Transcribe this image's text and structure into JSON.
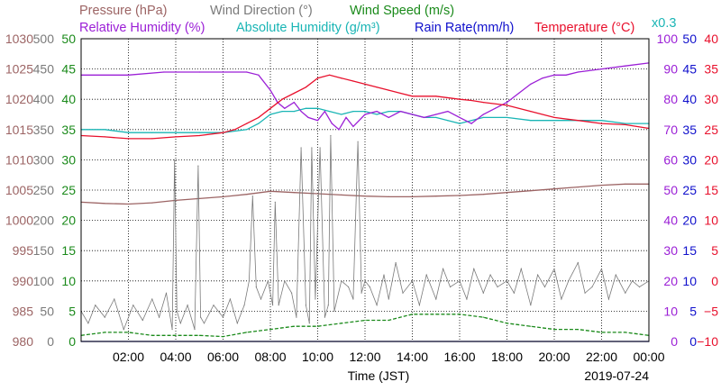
{
  "chart_data": {
    "type": "line",
    "date": "2019-07-24",
    "xlabel": "Time (JST)",
    "x_ticks": [
      "02:00",
      "04:00",
      "06:00",
      "08:00",
      "10:00",
      "12:00",
      "14:00",
      "16:00",
      "18:00",
      "20:00",
      "22:00",
      "00:00"
    ],
    "xlim_hours": [
      0,
      24
    ],
    "grid": true,
    "legend": {
      "row1": [
        {
          "text": "Pressure (hPa)",
          "color": "#9c6464"
        },
        {
          "text": "Wind Direction (°)",
          "color": "#7a7a7a"
        },
        {
          "text": "Wind Speed (m/s)",
          "color": "#1a8a1a"
        }
      ],
      "row2": [
        {
          "text": "Relative Humidity (%)",
          "color": "#9b1fd6"
        },
        {
          "text": "Absolute Humidity (g/m³)",
          "color": "#1ab5b5"
        },
        {
          "text": "Rain Rate(mm/h)",
          "color": "#1010cc"
        },
        {
          "text": "Temperature (°C)",
          "color": "#e8102c"
        }
      ],
      "multiplier": "x0.3",
      "multiplier_color": "#1ab5b5"
    },
    "axes": {
      "pressure": {
        "label": "Pressure (hPa)",
        "color": "#9c6464",
        "range": [
          980,
          1030
        ],
        "ticks": [
          "980",
          "985",
          "990",
          "995",
          "1000",
          "1005",
          "1010",
          "1015",
          "1020",
          "1025",
          "1030"
        ]
      },
      "wind_direction": {
        "label": "Wind Direction (°)",
        "color": "#7a7a7a",
        "range": [
          0,
          500
        ],
        "ticks": [
          "0",
          "50",
          "100",
          "150",
          "200",
          "250",
          "300",
          "350",
          "400",
          "450",
          "500"
        ]
      },
      "wind_speed": {
        "label": "Wind Speed (m/s)",
        "color": "#1a8a1a",
        "range": [
          0,
          50
        ],
        "ticks": [
          "0",
          "5",
          "10",
          "15",
          "20",
          "25",
          "30",
          "35",
          "40",
          "45",
          "50"
        ]
      },
      "relative_humidity": {
        "label": "Relative Humidity (%)",
        "color": "#9b1fd6",
        "range": [
          0,
          100
        ],
        "ticks": [
          "0",
          "10",
          "20",
          "30",
          "40",
          "50",
          "60",
          "70",
          "80",
          "90",
          "100"
        ]
      },
      "rain_rate": {
        "label": "Rain Rate(mm/h)",
        "color": "#1010cc",
        "range": [
          0,
          50
        ],
        "ticks": [
          "0",
          "5",
          "10",
          "15",
          "20",
          "25",
          "30",
          "35",
          "40",
          "45",
          "50"
        ]
      },
      "temperature": {
        "label": "Temperature (°C)",
        "color": "#e8102c",
        "range": [
          -10,
          40
        ],
        "ticks": [
          "−10",
          "−5",
          "0",
          "5",
          "10",
          "15",
          "20",
          "25",
          "30",
          "35",
          "40"
        ]
      }
    },
    "series": [
      {
        "name": "Pressure (hPa)",
        "axis": "pressure",
        "color": "#9c6464",
        "x": [
          0,
          1,
          2,
          3,
          4,
          5,
          6,
          7,
          8,
          9,
          10,
          11,
          12,
          13,
          14,
          15,
          16,
          17,
          18,
          19,
          20,
          21,
          22,
          23,
          24
        ],
        "values": [
          1003.0,
          1002.8,
          1002.7,
          1002.9,
          1003.3,
          1003.6,
          1003.9,
          1004.3,
          1004.8,
          1004.6,
          1004.4,
          1004.2,
          1004.0,
          1003.9,
          1003.9,
          1004.0,
          1004.1,
          1004.3,
          1004.6,
          1004.9,
          1005.2,
          1005.5,
          1005.8,
          1006.0,
          1006.0
        ]
      },
      {
        "name": "Relative Humidity (%)",
        "axis": "relative_humidity",
        "color": "#9b1fd6",
        "x": [
          0,
          2,
          3.5,
          5,
          6,
          7,
          7.5,
          8,
          8.3,
          8.6,
          9,
          9.3,
          9.6,
          10,
          10.3,
          10.6,
          10.9,
          11.2,
          11.5,
          12,
          12.5,
          13,
          13.5,
          14,
          14.5,
          15,
          15.5,
          16,
          16.5,
          17,
          17.5,
          18,
          18.5,
          19,
          19.5,
          20,
          20.5,
          21,
          22,
          23,
          24
        ],
        "values": [
          88,
          88,
          89,
          89,
          89,
          89,
          88,
          83,
          79,
          77,
          79,
          76,
          74,
          73,
          76,
          72,
          70,
          74,
          71,
          75,
          76,
          74,
          76,
          75,
          74,
          75,
          76,
          74,
          72,
          75,
          77,
          79,
          82,
          85,
          87,
          88,
          88,
          89,
          90,
          91,
          92
        ]
      },
      {
        "name": "Absolute Humidity (g/m³)",
        "axis": "relative_humidity",
        "color": "#1ab5b5",
        "x": [
          0,
          1,
          2,
          3,
          4,
          5,
          6,
          7,
          7.5,
          8,
          8.5,
          9,
          9.5,
          10,
          10.5,
          11,
          11.5,
          12,
          12.5,
          13,
          13.5,
          14,
          14.5,
          15,
          15.5,
          16,
          16.5,
          17,
          18,
          19,
          20,
          21,
          22,
          23,
          24
        ],
        "values": [
          70,
          70,
          69,
          69,
          69,
          69,
          69,
          70,
          72,
          75,
          76,
          76,
          77,
          77,
          76,
          75,
          76,
          76,
          75,
          76,
          76,
          75,
          74,
          74,
          73,
          72,
          73,
          74,
          74,
          73,
          73,
          73,
          73,
          72,
          72
        ]
      },
      {
        "name": "Rain Rate(mm/h)",
        "axis": "rain_rate",
        "color": "#1010cc",
        "x": [
          0,
          24
        ],
        "values": [
          0,
          0
        ]
      },
      {
        "name": "Temperature (°C)",
        "axis": "temperature",
        "color": "#e8102c",
        "x": [
          0,
          1,
          2,
          3,
          4,
          5,
          6,
          6.5,
          7,
          7.5,
          8,
          8.5,
          9,
          9.5,
          10,
          10.5,
          11,
          11.5,
          12,
          12.5,
          13,
          13.5,
          14,
          15,
          16,
          16.5,
          17,
          18,
          19,
          20,
          21,
          22,
          23,
          24
        ],
        "values": [
          24.0,
          23.8,
          23.5,
          23.5,
          23.8,
          24.0,
          24.5,
          25.0,
          26.0,
          27.0,
          28.5,
          30.0,
          31.0,
          32.0,
          33.5,
          34.0,
          33.5,
          33.0,
          32.5,
          32.0,
          31.5,
          31.0,
          30.5,
          30.5,
          30.0,
          29.8,
          29.5,
          29.0,
          28.0,
          27.0,
          26.5,
          26.0,
          25.8,
          25.2
        ]
      },
      {
        "name": "Wind Direction (°)",
        "axis": "wind_direction",
        "color": "#7a7a7a",
        "x": [
          0,
          0.3,
          0.6,
          1,
          1.4,
          1.8,
          2.2,
          2.6,
          3,
          3.3,
          3.6,
          3.85,
          3.95,
          4.05,
          4.2,
          4.5,
          4.8,
          4.95,
          5.05,
          5.2,
          5.6,
          6,
          6.3,
          6.6,
          6.9,
          7.1,
          7.25,
          7.4,
          7.6,
          7.9,
          8.1,
          8.2,
          8.35,
          8.6,
          8.9,
          9.1,
          9.3,
          9.5,
          9.65,
          9.75,
          9.9,
          10.1,
          10.3,
          10.45,
          10.55,
          10.7,
          11,
          11.3,
          11.5,
          11.7,
          11.85,
          12,
          12.2,
          12.5,
          12.8,
          13,
          13.3,
          13.6,
          14,
          14.3,
          14.6,
          15,
          15.3,
          15.6,
          16,
          16.3,
          16.6,
          17,
          17.3,
          17.6,
          18,
          18.3,
          18.6,
          19,
          19.3,
          19.6,
          20,
          20.3,
          20.6,
          21,
          21.3,
          21.6,
          22,
          22.3,
          22.6,
          23,
          23.3,
          23.6,
          24
        ],
        "values": [
          50,
          30,
          60,
          40,
          70,
          20,
          60,
          35,
          70,
          40,
          80,
          20,
          300,
          50,
          30,
          60,
          20,
          290,
          40,
          30,
          60,
          40,
          70,
          30,
          60,
          100,
          240,
          90,
          70,
          100,
          60,
          230,
          60,
          100,
          80,
          40,
          320,
          60,
          30,
          320,
          70,
          320,
          40,
          60,
          340,
          50,
          100,
          90,
          70,
          330,
          80,
          100,
          90,
          60,
          110,
          70,
          130,
          80,
          100,
          60,
          110,
          70,
          120,
          90,
          100,
          70,
          120,
          80,
          110,
          90,
          100,
          80,
          120,
          60,
          110,
          90,
          120,
          70,
          100,
          130,
          80,
          90,
          120,
          70,
          110,
          80,
          100,
          90,
          100
        ]
      },
      {
        "name": "Wind Speed (m/s)",
        "axis": "wind_speed",
        "color": "#1a8a1a",
        "x": [
          0,
          1,
          2,
          3,
          4,
          5,
          6,
          7,
          8,
          9,
          10,
          11,
          12,
          13,
          14,
          15,
          16,
          17,
          18,
          19,
          20,
          21,
          22,
          23,
          24
        ],
        "values": [
          1,
          1.5,
          1.5,
          1,
          1,
          1,
          0.8,
          1.5,
          2,
          2.5,
          2.5,
          3,
          3.5,
          3.5,
          4.5,
          4.5,
          4.5,
          4,
          3,
          2.5,
          2,
          2,
          1.5,
          1.5,
          1
        ]
      }
    ]
  }
}
